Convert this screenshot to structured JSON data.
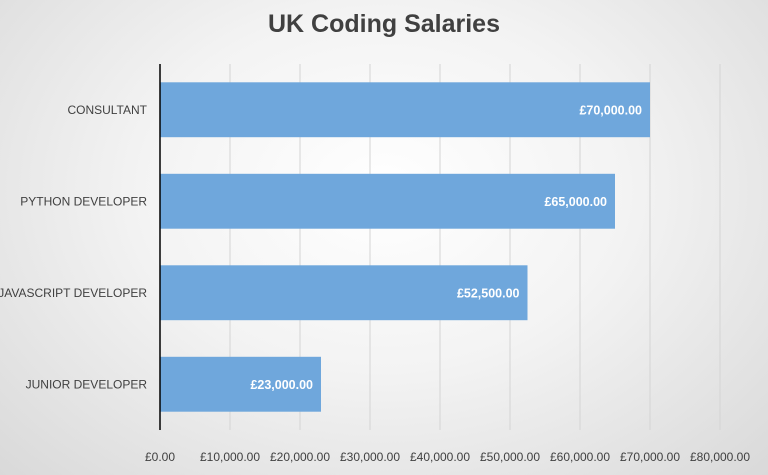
{
  "chart_data": {
    "type": "bar",
    "orientation": "horizontal",
    "title": "UK Coding Salaries",
    "xlabel": "",
    "ylabel": "",
    "categories": [
      "CONSULTANT",
      "PYTHON DEVELOPER",
      "JAVASCRIPT DEVELOPER",
      "JUNIOR DEVELOPER"
    ],
    "values": [
      70000,
      65000,
      52500,
      23000
    ],
    "data_labels": [
      "£70,000.00",
      "£65,000.00",
      "£52,500.00",
      "£23,000.00"
    ],
    "xlim": [
      0,
      80000
    ],
    "x_ticks": [
      0,
      10000,
      20000,
      30000,
      40000,
      50000,
      60000,
      70000,
      80000
    ],
    "x_tick_labels": [
      "£0.00",
      "£10,000.00",
      "£20,000.00",
      "£30,000.00",
      "£40,000.00",
      "£50,000.00",
      "£60,000.00",
      "£70,000.00",
      "£80,000.00"
    ],
    "grid": true,
    "legend": "none",
    "colors": {
      "bar": "#6fa7dc",
      "title": "#404040",
      "text": "#404040",
      "grid": "#d4d4d4",
      "axis": "#000000",
      "data_label": "#ffffff"
    }
  }
}
